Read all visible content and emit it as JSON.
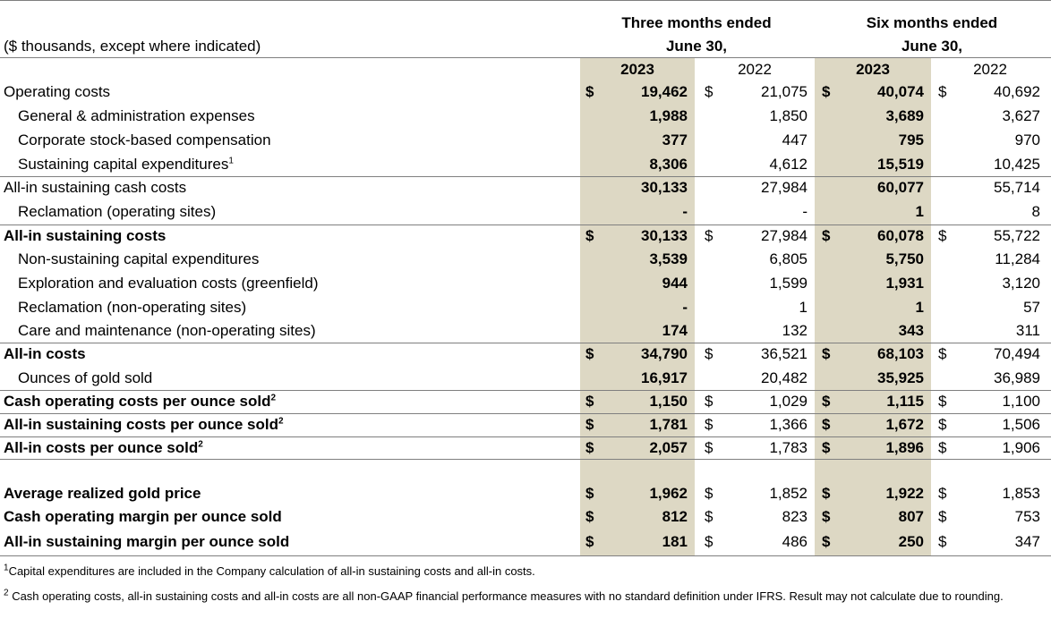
{
  "header": {
    "units_label": "($ thousands, except where indicated)",
    "three_months_line1": "Three months ended",
    "three_months_line2": "June 30,",
    "six_months_line1": "Six months ended",
    "six_months_line2": "June 30,",
    "years": [
      "2023",
      "2022",
      "2023",
      "2022"
    ]
  },
  "rows": [
    {
      "label": "Operating costs",
      "sup": "",
      "indent": false,
      "bold": false,
      "dollar": true,
      "values": [
        "19,462",
        "21,075",
        "40,074",
        "40,692"
      ]
    },
    {
      "label": "General & administration expenses",
      "sup": "",
      "indent": true,
      "bold": false,
      "dollar": false,
      "values": [
        "1,988",
        "1,850",
        "3,689",
        "3,627"
      ]
    },
    {
      "label": "Corporate stock-based compensation",
      "sup": "",
      "indent": true,
      "bold": false,
      "dollar": false,
      "values": [
        "377",
        "447",
        "795",
        "970"
      ]
    },
    {
      "label": "Sustaining capital expenditures",
      "sup": "1",
      "indent": true,
      "bold": false,
      "dollar": false,
      "values": [
        "8,306",
        "4,612",
        "15,519",
        "10,425"
      ]
    },
    {
      "label": "All-in sustaining cash costs",
      "sup": "",
      "indent": false,
      "bold": false,
      "dollar": false,
      "values": [
        "30,133",
        "27,984",
        "60,077",
        "55,714"
      ]
    },
    {
      "label": "Reclamation (operating sites)",
      "sup": "",
      "indent": true,
      "bold": false,
      "dollar": false,
      "values": [
        "-",
        "-",
        "1",
        "8"
      ]
    },
    {
      "label": "All-in sustaining costs",
      "sup": "",
      "indent": false,
      "bold": true,
      "dollar": true,
      "values": [
        "30,133",
        "27,984",
        "60,078",
        "55,722"
      ]
    },
    {
      "label": "Non-sustaining capital expenditures",
      "sup": "",
      "indent": true,
      "bold": false,
      "dollar": false,
      "values": [
        "3,539",
        "6,805",
        "5,750",
        "11,284"
      ]
    },
    {
      "label": "Exploration and evaluation costs (greenfield)",
      "sup": "",
      "indent": true,
      "bold": false,
      "dollar": false,
      "values": [
        "944",
        "1,599",
        "1,931",
        "3,120"
      ]
    },
    {
      "label": "Reclamation (non-operating sites)",
      "sup": "",
      "indent": true,
      "bold": false,
      "dollar": false,
      "values": [
        "-",
        "1",
        "1",
        "57"
      ]
    },
    {
      "label": "Care and maintenance (non-operating sites)",
      "sup": "",
      "indent": true,
      "bold": false,
      "dollar": false,
      "values": [
        "174",
        "132",
        "343",
        "311"
      ]
    },
    {
      "label": "All-in costs",
      "sup": "",
      "indent": false,
      "bold": true,
      "dollar": true,
      "values": [
        "34,790",
        "36,521",
        "68,103",
        "70,494"
      ]
    },
    {
      "label": "Ounces of gold sold",
      "sup": "",
      "indent": true,
      "bold": false,
      "dollar": false,
      "values": [
        "16,917",
        "20,482",
        "35,925",
        "36,989"
      ]
    },
    {
      "label": "Cash operating costs per ounce sold",
      "sup": "2",
      "indent": false,
      "bold": true,
      "dollar": true,
      "values": [
        "1,150",
        "1,029",
        "1,115",
        "1,100"
      ]
    },
    {
      "label": "All-in sustaining costs per ounce sold",
      "sup": "2",
      "indent": false,
      "bold": true,
      "dollar": true,
      "values": [
        "1,781",
        "1,366",
        "1,672",
        "1,506"
      ]
    },
    {
      "label": "All-in costs per ounce sold",
      "sup": "2",
      "indent": false,
      "bold": true,
      "dollar": true,
      "values": [
        "2,057",
        "1,783",
        "1,896",
        "1,906"
      ]
    },
    {
      "label": "",
      "sup": "",
      "indent": false,
      "bold": false,
      "dollar": false,
      "values": [
        "",
        "",
        "",
        ""
      ]
    },
    {
      "label": "Average realized gold price",
      "sup": "",
      "indent": false,
      "bold": true,
      "dollar": true,
      "values": [
        "1,962",
        "1,852",
        "1,922",
        "1,853"
      ]
    },
    {
      "label": "Cash operating margin per ounce sold",
      "sup": "",
      "indent": false,
      "bold": true,
      "dollar": true,
      "values": [
        "812",
        "823",
        "807",
        "753"
      ]
    },
    {
      "label": "All-in sustaining margin per ounce sold",
      "sup": "",
      "indent": false,
      "bold": true,
      "dollar": true,
      "values": [
        "181",
        "486",
        "250",
        "347"
      ]
    }
  ],
  "currency_symbol": "$",
  "footnotes": [
    {
      "sup": "1",
      "text": "Capital expenditures are included in the Company calculation of all-in sustaining costs and all-in costs."
    },
    {
      "sup": "2",
      "text": "Cash operating costs, all-in sustaining costs and all-in costs are all non-GAAP financial performance measures with no standard definition under IFRS.  Result may not calculate due to rounding."
    }
  ],
  "colors": {
    "shade": "#ddd8c4",
    "rule": "#7f7f7f"
  }
}
